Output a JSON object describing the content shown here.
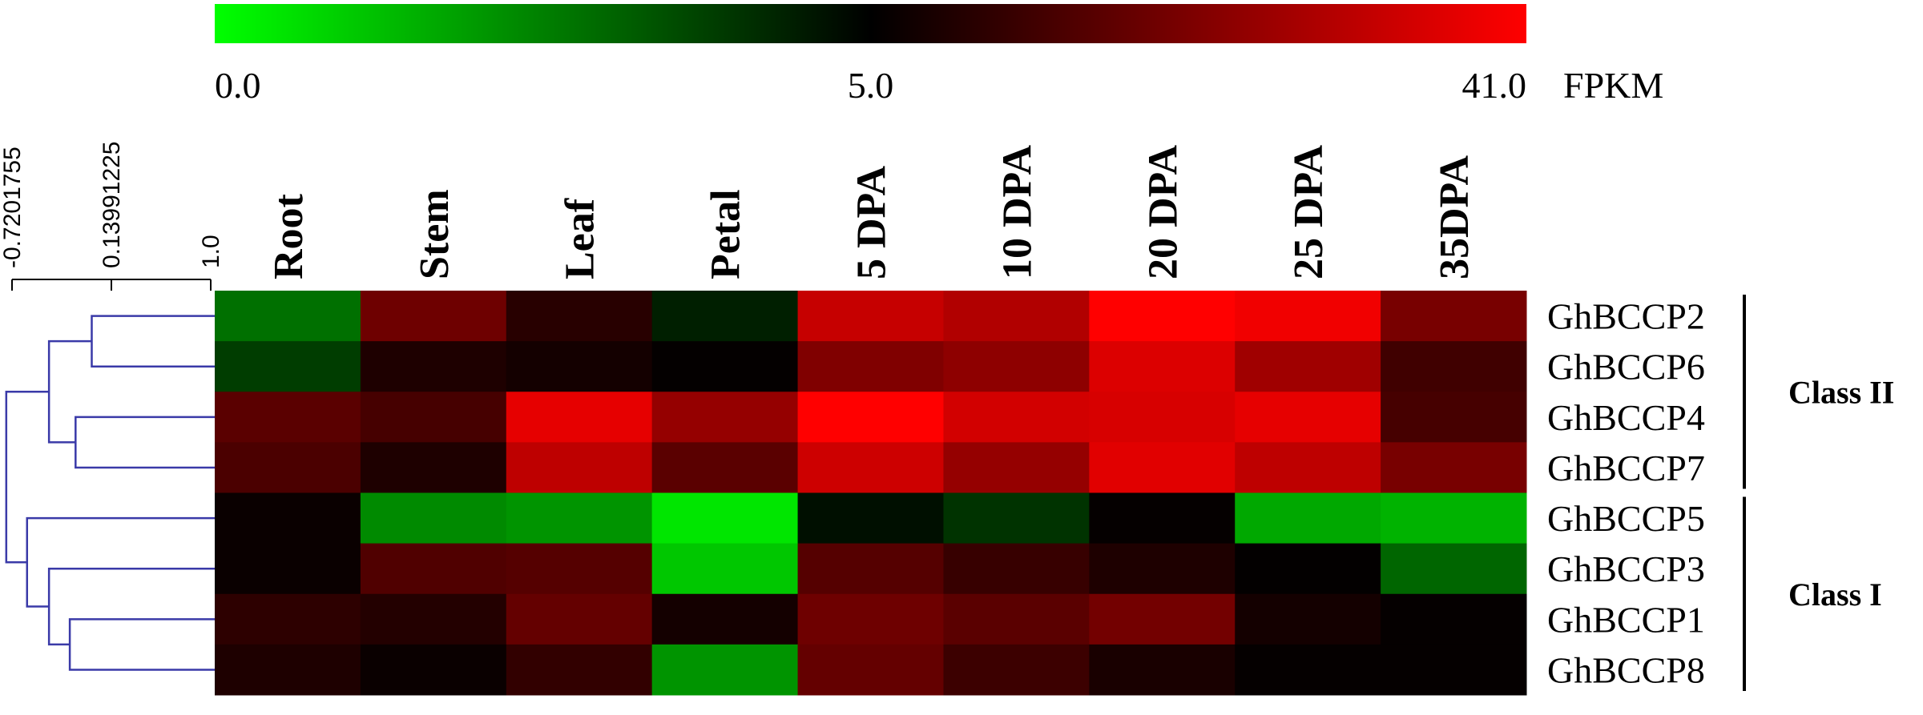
{
  "chart_data": {
    "type": "heatmap",
    "columns": [
      "Root",
      "Stem",
      "Leaf",
      "Petal",
      "5 DPA",
      "10 DPA",
      "20 DPA",
      "25 DPA",
      "35DPA"
    ],
    "rows": [
      "GhBCCP2",
      "GhBCCP6",
      "GhBCCP4",
      "GhBCCP7",
      "GhBCCP5",
      "GhBCCP3",
      "GhBCCP1",
      "GhBCCP8"
    ],
    "values": [
      [
        2.8,
        20.5,
        10.6,
        4.4,
        33,
        30,
        41,
        39,
        22
      ],
      [
        3.8,
        9.2,
        7.8,
        5.5,
        23,
        25,
        36,
        27.6,
        14
      ],
      [
        17.7,
        14.9,
        37.5,
        26,
        41,
        34.6,
        35.4,
        37.5,
        14.9
      ],
      [
        15.6,
        9.2,
        31.8,
        17.7,
        34,
        26,
        36.8,
        31.8,
        22
      ],
      [
        6.4,
        2.3,
        2.1,
        0.5,
        4.7,
        4.0,
        5.7,
        1.7,
        1.5
      ],
      [
        6.4,
        16.3,
        17,
        1.1,
        17,
        12.8,
        9.2,
        5.4,
        3.0
      ],
      [
        11.4,
        9.9,
        19.1,
        7.8,
        20.5,
        17.7,
        21.2,
        7.8,
        5.7
      ],
      [
        9.2,
        6.4,
        12,
        2.1,
        19.1,
        13.5,
        8.5,
        5.7,
        5.7
      ]
    ],
    "colorscale": {
      "label": "FPKM",
      "ticks": [
        {
          "value": 0,
          "label": "0.0"
        },
        {
          "value": 5,
          "label": "5.0"
        },
        {
          "value": 41,
          "label": "41.0"
        }
      ],
      "colors": [
        "#00ff00",
        "#000000",
        "#ff0000"
      ]
    },
    "dendrogram": {
      "color": "#3a3aa8",
      "xlim": [
        -0.7201755,
        1.0
      ],
      "xticks": [
        -0.7201755,
        0.13991225,
        {
          "value": 1.0,
          "label": "1.0"
        }
      ],
      "merges": [
        {
          "children": [
            0,
            1
          ],
          "height": -0.03
        },
        {
          "children": [
            2,
            3
          ],
          "height": -0.17
        },
        {
          "children": [
            8,
            9
          ],
          "height": -0.4
        },
        {
          "children": [
            6,
            7
          ],
          "height": -0.22
        },
        {
          "children": [
            5,
            11
          ],
          "height": -0.4
        },
        {
          "children": [
            4,
            12
          ],
          "height": -0.59
        },
        {
          "children": [
            10,
            13
          ],
          "height": -0.77
        }
      ]
    },
    "groups": [
      {
        "label": "Class II",
        "rows": [
          0,
          3
        ]
      },
      {
        "label": "Class I",
        "rows": [
          4,
          7
        ]
      }
    ]
  }
}
